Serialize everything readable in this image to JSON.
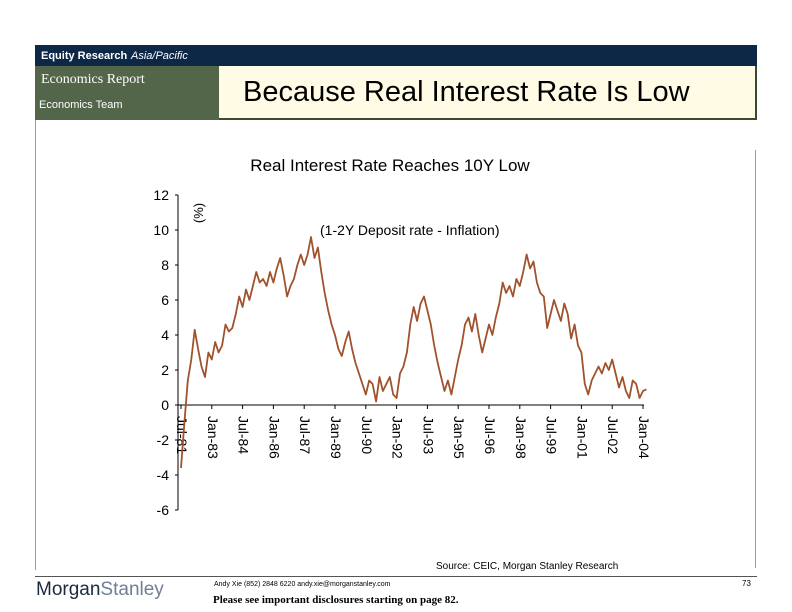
{
  "header": {
    "equity_research": "Equity Research",
    "region": "Asia/Pacific",
    "report_type": "Economics Report",
    "team": "Economics Team",
    "slide_title": "Because Real Interest Rate Is Low"
  },
  "footer": {
    "source": "Source: CEIC, Morgan Stanley Research",
    "logo_dark": "Morgan",
    "logo_light": "Stanley",
    "author_line": "Andy Xie (852) 2848 6220  andy.xie@morganstanley.com",
    "disclosure": "Please see important disclosures starting on page 82.",
    "page_number": "73"
  },
  "chart_data": {
    "type": "line",
    "title": "Real Interest Rate Reaches 10Y Low",
    "ylabel": "(%)",
    "annotation": "(1-2Y Deposit rate - Inflation)",
    "ylim": [
      -6,
      12
    ],
    "yticks": [
      12,
      10,
      8,
      6,
      4,
      2,
      0,
      -2,
      -4,
      -6
    ],
    "xticks": [
      "Jul-81",
      "Jan-83",
      "Jul-84",
      "Jan-86",
      "Jul-87",
      "Jan-89",
      "Jul-90",
      "Jan-92",
      "Jul-93",
      "Jan-95",
      "Jul-96",
      "Jan-98",
      "Jul-99",
      "Jan-01",
      "Jul-02",
      "Jan-04"
    ],
    "line_color": "#a0522d",
    "grid": false,
    "series": [
      {
        "points": [
          [
            "1981-07",
            -3.6
          ],
          [
            "1981-09",
            -1.0
          ],
          [
            "1981-11",
            1.4
          ],
          [
            "1982-01",
            2.6
          ],
          [
            "1982-03",
            4.3
          ],
          [
            "1982-05",
            3.2
          ],
          [
            "1982-07",
            2.2
          ],
          [
            "1982-09",
            1.6
          ],
          [
            "1982-11",
            3.0
          ],
          [
            "1983-01",
            2.6
          ],
          [
            "1983-03",
            3.6
          ],
          [
            "1983-05",
            3.0
          ],
          [
            "1983-07",
            3.4
          ],
          [
            "1983-09",
            4.6
          ],
          [
            "1983-11",
            4.2
          ],
          [
            "1984-01",
            4.4
          ],
          [
            "1984-03",
            5.2
          ],
          [
            "1984-05",
            6.2
          ],
          [
            "1984-07",
            5.6
          ],
          [
            "1984-09",
            6.6
          ],
          [
            "1984-11",
            6.0
          ],
          [
            "1985-01",
            6.8
          ],
          [
            "1985-03",
            7.6
          ],
          [
            "1985-05",
            7.0
          ],
          [
            "1985-07",
            7.2
          ],
          [
            "1985-09",
            6.8
          ],
          [
            "1985-11",
            7.6
          ],
          [
            "1986-01",
            7.0
          ],
          [
            "1986-03",
            7.8
          ],
          [
            "1986-05",
            8.4
          ],
          [
            "1986-07",
            7.4
          ],
          [
            "1986-09",
            6.2
          ],
          [
            "1986-11",
            6.8
          ],
          [
            "1987-01",
            7.2
          ],
          [
            "1987-03",
            8.0
          ],
          [
            "1987-05",
            8.6
          ],
          [
            "1987-07",
            8.0
          ],
          [
            "1987-09",
            8.6
          ],
          [
            "1987-11",
            9.6
          ],
          [
            "1988-01",
            8.4
          ],
          [
            "1988-03",
            9.0
          ],
          [
            "1988-05",
            7.6
          ],
          [
            "1988-07",
            6.4
          ],
          [
            "1988-09",
            5.4
          ],
          [
            "1988-11",
            4.6
          ],
          [
            "1989-01",
            4.0
          ],
          [
            "1989-03",
            3.2
          ],
          [
            "1989-05",
            2.8
          ],
          [
            "1989-07",
            3.6
          ],
          [
            "1989-09",
            4.2
          ],
          [
            "1989-11",
            3.2
          ],
          [
            "1990-01",
            2.4
          ],
          [
            "1990-03",
            1.8
          ],
          [
            "1990-05",
            1.2
          ],
          [
            "1990-07",
            0.6
          ],
          [
            "1990-09",
            1.4
          ],
          [
            "1990-11",
            1.2
          ],
          [
            "1991-01",
            0.2
          ],
          [
            "1991-03",
            1.6
          ],
          [
            "1991-05",
            0.8
          ],
          [
            "1991-07",
            1.2
          ],
          [
            "1991-09",
            1.6
          ],
          [
            "1991-11",
            0.6
          ],
          [
            "1992-01",
            0.4
          ],
          [
            "1992-03",
            1.8
          ],
          [
            "1992-05",
            2.2
          ],
          [
            "1992-07",
            3.0
          ],
          [
            "1992-09",
            4.6
          ],
          [
            "1992-11",
            5.6
          ],
          [
            "1993-01",
            4.8
          ],
          [
            "1993-03",
            5.8
          ],
          [
            "1993-05",
            6.2
          ],
          [
            "1993-07",
            5.4
          ],
          [
            "1993-09",
            4.6
          ],
          [
            "1993-11",
            3.4
          ],
          [
            "1994-01",
            2.4
          ],
          [
            "1994-03",
            1.6
          ],
          [
            "1994-05",
            0.8
          ],
          [
            "1994-07",
            1.4
          ],
          [
            "1994-09",
            0.6
          ],
          [
            "1994-11",
            1.6
          ],
          [
            "1995-01",
            2.6
          ],
          [
            "1995-03",
            3.4
          ],
          [
            "1995-05",
            4.6
          ],
          [
            "1995-07",
            5.0
          ],
          [
            "1995-09",
            4.2
          ],
          [
            "1995-11",
            5.2
          ],
          [
            "1996-01",
            4.0
          ],
          [
            "1996-03",
            3.0
          ],
          [
            "1996-05",
            3.8
          ],
          [
            "1996-07",
            4.6
          ],
          [
            "1996-09",
            4.0
          ],
          [
            "1996-11",
            5.0
          ],
          [
            "1997-01",
            5.8
          ],
          [
            "1997-03",
            7.0
          ],
          [
            "1997-05",
            6.4
          ],
          [
            "1997-07",
            6.8
          ],
          [
            "1997-09",
            6.2
          ],
          [
            "1997-11",
            7.2
          ],
          [
            "1998-01",
            6.8
          ],
          [
            "1998-03",
            7.6
          ],
          [
            "1998-05",
            8.6
          ],
          [
            "1998-07",
            7.8
          ],
          [
            "1998-09",
            8.2
          ],
          [
            "1998-11",
            7.0
          ],
          [
            "1999-01",
            6.4
          ],
          [
            "1999-03",
            6.2
          ],
          [
            "1999-05",
            4.4
          ],
          [
            "1999-07",
            5.2
          ],
          [
            "1999-09",
            6.0
          ],
          [
            "1999-11",
            5.4
          ],
          [
            "2000-01",
            4.8
          ],
          [
            "2000-03",
            5.8
          ],
          [
            "2000-05",
            5.2
          ],
          [
            "2000-07",
            3.8
          ],
          [
            "2000-09",
            4.6
          ],
          [
            "2000-11",
            3.4
          ],
          [
            "2001-01",
            3.0
          ],
          [
            "2001-03",
            1.2
          ],
          [
            "2001-05",
            0.6
          ],
          [
            "2001-07",
            1.4
          ],
          [
            "2001-09",
            1.8
          ],
          [
            "2001-11",
            2.2
          ],
          [
            "2002-01",
            1.8
          ],
          [
            "2002-03",
            2.4
          ],
          [
            "2002-05",
            2.0
          ],
          [
            "2002-07",
            2.6
          ],
          [
            "2002-09",
            1.8
          ],
          [
            "2002-11",
            1.0
          ],
          [
            "2003-01",
            1.6
          ],
          [
            "2003-03",
            0.8
          ],
          [
            "2003-05",
            0.4
          ],
          [
            "2003-07",
            1.4
          ],
          [
            "2003-09",
            1.2
          ],
          [
            "2003-11",
            0.4
          ],
          [
            "2004-01",
            0.8
          ],
          [
            "2004-03",
            0.9
          ]
        ]
      }
    ]
  }
}
